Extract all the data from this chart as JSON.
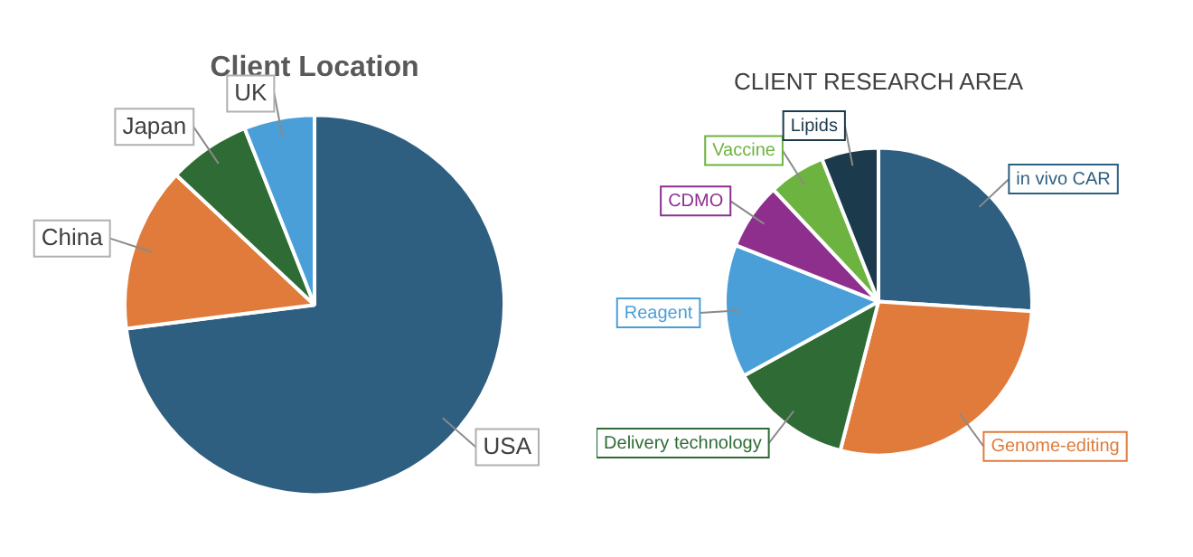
{
  "chart_data": [
    {
      "type": "pie",
      "title": "Client Location",
      "categories": [
        "USA",
        "China",
        "Japan",
        "UK"
      ],
      "values": [
        73,
        14,
        7,
        6
      ],
      "colors": [
        "#2e5f80",
        "#e07b3c",
        "#2f6b35",
        "#4a9fd8"
      ]
    },
    {
      "type": "pie",
      "title": "CLIENT RESEARCH AREA",
      "categories": [
        "in vivo CAR",
        "Genome-editing",
        "Delivery technology",
        "Reagent",
        "CDMO",
        "Vaccine",
        "Lipids"
      ],
      "values": [
        26,
        28,
        13,
        14,
        7,
        6,
        6
      ],
      "colors": [
        "#2e5f80",
        "#e07b3c",
        "#2f6b35",
        "#4a9fd8",
        "#8e2f8e",
        "#6db33f",
        "#1b3a4b"
      ]
    }
  ]
}
